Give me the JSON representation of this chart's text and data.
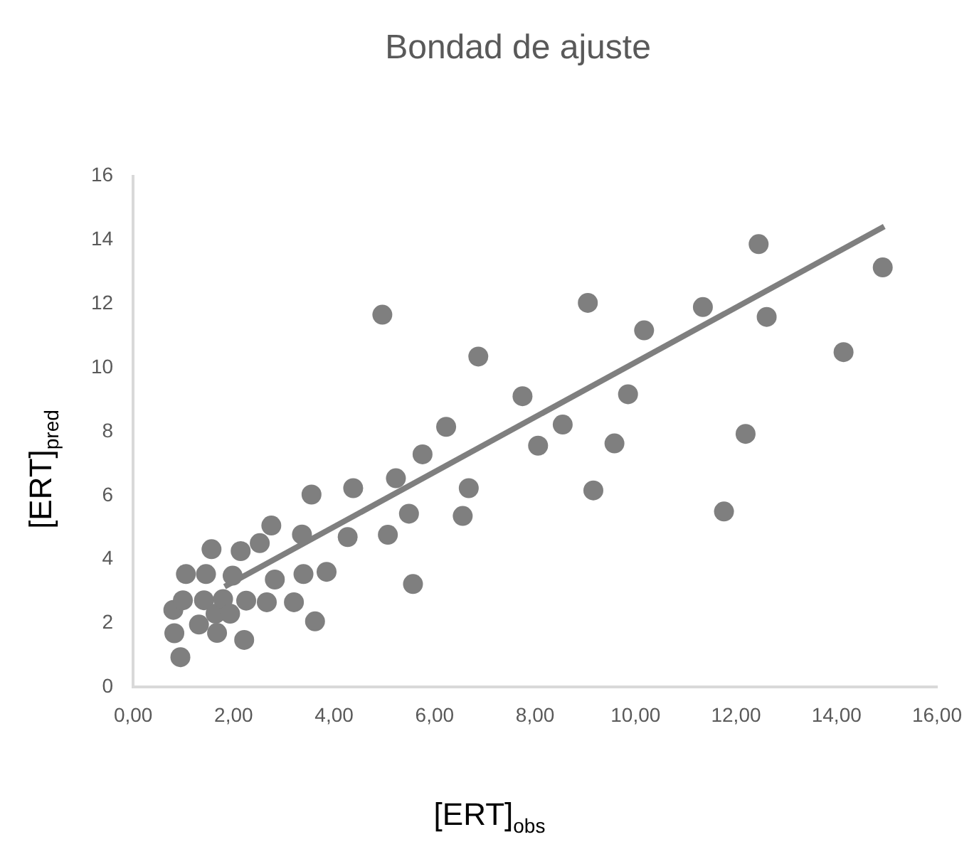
{
  "chart_data": {
    "type": "scatter",
    "title": "Bondad de ajuste",
    "xlabel": "[ERT]$_{obs}$",
    "ylabel": "[ERT]$_{pred}$",
    "xlim": [
      0,
      16
    ],
    "xticks": [
      {
        "value": 0,
        "label": "0,00"
      },
      {
        "value": 2,
        "label": "2,00"
      },
      {
        "value": 4,
        "label": "4,00"
      },
      {
        "value": 6,
        "label": "6,00"
      },
      {
        "value": 8,
        "label": "8,00"
      },
      {
        "value": 10,
        "label": "10,00"
      },
      {
        "value": 12,
        "label": "12,00"
      },
      {
        "value": 14,
        "label": "14,00"
      },
      {
        "value": 16,
        "label": "16,00"
      }
    ],
    "ylim": [
      0,
      16
    ],
    "yticks": [
      0,
      2,
      4,
      6,
      8,
      10,
      12,
      14,
      16
    ],
    "grid": false,
    "legend": false,
    "marker": "circle",
    "series": [
      {
        "color": "#7f7f7f",
        "x": [
          0.8,
          0.94,
          0.82,
          0.99,
          1.05,
          1.31,
          1.41,
          1.45,
          1.56,
          1.67,
          1.64,
          1.79,
          1.93,
          1.98,
          2.14,
          2.21,
          2.25,
          2.52,
          2.66,
          2.75,
          2.82,
          3.2,
          3.36,
          3.39,
          3.55,
          3.62,
          3.85,
          4.27,
          4.38,
          4.96,
          5.07,
          5.23,
          5.49,
          5.57,
          5.76,
          6.23,
          6.56,
          6.68,
          6.87,
          7.75,
          8.06,
          8.55,
          9.05,
          9.16,
          9.58,
          9.85,
          10.17,
          11.34,
          11.76,
          12.19,
          12.45,
          12.61,
          14.14,
          14.92
        ],
        "values": [
          2.42,
          0.94,
          1.69,
          2.72,
          3.54,
          1.96,
          2.72,
          3.54,
          4.32,
          1.7,
          2.3,
          2.76,
          2.3,
          3.49,
          4.26,
          1.48,
          2.71,
          4.51,
          2.66,
          5.06,
          3.37,
          2.66,
          4.78,
          3.54,
          6.03,
          2.06,
          3.61,
          4.7,
          6.23,
          11.66,
          4.77,
          6.54,
          5.43,
          3.23,
          7.29,
          8.15,
          5.36,
          6.23,
          10.35,
          9.11,
          7.56,
          8.22,
          12.03,
          6.16,
          7.63,
          9.17,
          11.17,
          11.9,
          5.5,
          7.93,
          13.87,
          11.59,
          10.49,
          13.14
        ]
      },
      {
        "type": "line",
        "color": "#7f7f7f",
        "x": [
          1.82,
          14.95
        ],
        "values": [
          3.15,
          14.42
        ],
        "marker": "none",
        "line_style": "solid"
      }
    ]
  }
}
